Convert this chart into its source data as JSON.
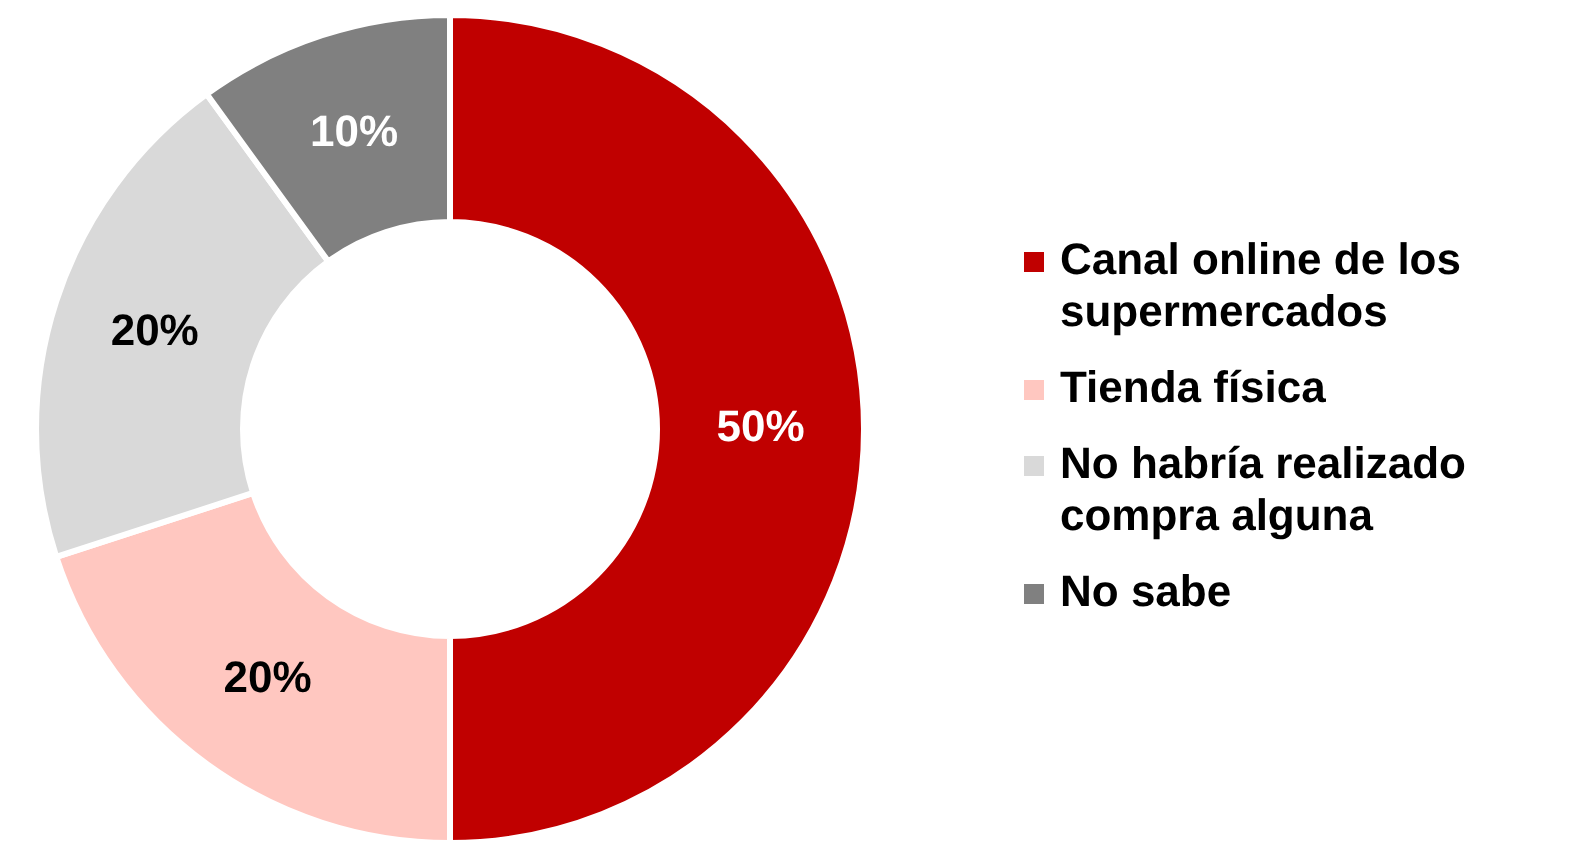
{
  "chart_data": {
    "type": "donut",
    "categories": [
      "Canal online de los supermercados",
      "Tienda física",
      "No habría realizado compra alguna",
      "No sabe"
    ],
    "values": [
      50,
      20,
      20,
      10
    ],
    "colors": [
      "#c00000",
      "#ffc7c0",
      "#d9d9d9",
      "#808080"
    ],
    "value_labels": [
      "50%",
      "20%",
      "20%",
      "10%"
    ],
    "legend": "right"
  }
}
